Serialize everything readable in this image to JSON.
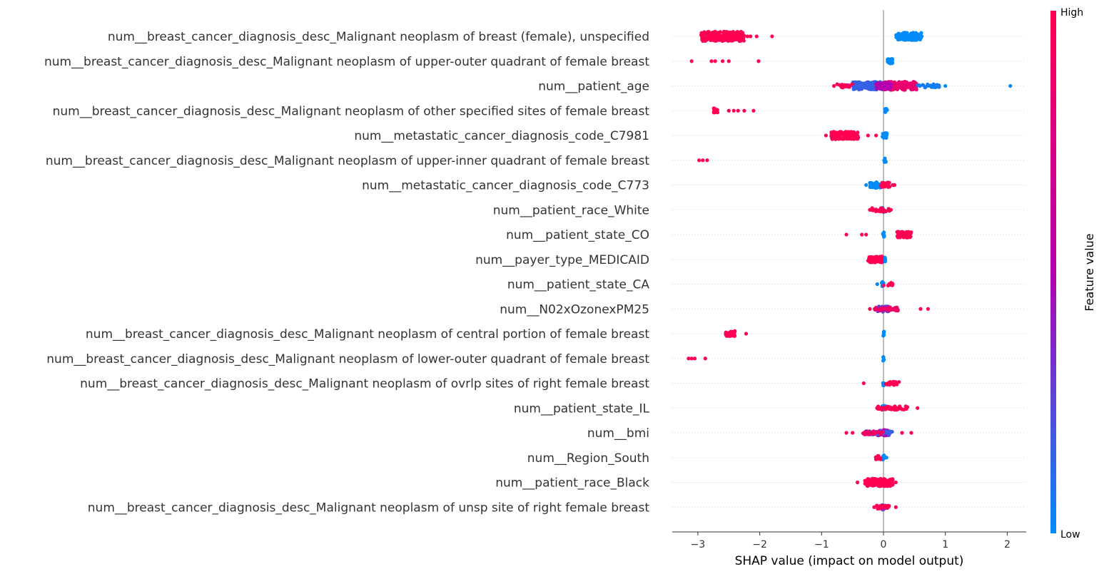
{
  "chart_data": {
    "type": "scatter",
    "subtype": "shap-beeswarm",
    "xlabel": "SHAP value (impact on model output)",
    "xlim": [
      -3.4,
      2.3
    ],
    "xticks": [
      -3,
      -2,
      -1,
      0,
      1,
      2
    ],
    "xtick_labels": [
      "−3",
      "−2",
      "−1",
      "0",
      "1",
      "2"
    ],
    "colorbar": {
      "title": "Feature value",
      "high_label": "High",
      "low_label": "Low",
      "low_color": "#008bfb",
      "high_color": "#ff0052"
    },
    "features": [
      {
        "name": "num__breast_cancer_diagnosis_desc_Malignant neoplasm of breast (female), unspecified",
        "clusters": [
          {
            "from": 0.2,
            "to": 0.62,
            "feature": 0.0,
            "density": "heavy"
          },
          {
            "from": -2.95,
            "to": -2.25,
            "feature": 1.0,
            "density": "heavy"
          }
        ],
        "points": [
          {
            "x": -2.15,
            "f": 1
          },
          {
            "x": -2.05,
            "f": 1
          },
          {
            "x": -1.8,
            "f": 1
          },
          {
            "x": -2.2,
            "f": 1
          }
        ]
      },
      {
        "name": "num__breast_cancer_diagnosis_desc_Malignant neoplasm of upper-outer quadrant of female breast",
        "clusters": [
          {
            "from": 0.06,
            "to": 0.15,
            "feature": 0.0,
            "density": "heavy"
          }
        ],
        "points": [
          {
            "x": -3.1,
            "f": 1
          },
          {
            "x": -2.78,
            "f": 1
          },
          {
            "x": -2.72,
            "f": 1
          },
          {
            "x": -2.6,
            "f": 1
          },
          {
            "x": -2.5,
            "f": 1
          },
          {
            "x": -2.02,
            "f": 1
          }
        ]
      },
      {
        "name": "num__patient_age",
        "clusters": [
          {
            "from": -0.5,
            "to": 0.0,
            "feature": 0.15,
            "density": "heavy"
          },
          {
            "from": 0.0,
            "to": 0.55,
            "feature": 0.85,
            "density": "heavy"
          },
          {
            "from": -0.12,
            "to": 0.12,
            "feature": 0.5,
            "density": "heavy"
          },
          {
            "from": 0.55,
            "to": 0.9,
            "feature": 0.05,
            "density": "light"
          },
          {
            "from": -0.75,
            "to": -0.5,
            "feature": 0.95,
            "density": "light"
          }
        ],
        "points": [
          {
            "x": 1.0,
            "f": 0
          },
          {
            "x": 2.05,
            "f": 0
          },
          {
            "x": -0.8,
            "f": 1
          }
        ]
      },
      {
        "name": "num__breast_cancer_diagnosis_desc_Malignant neoplasm of other specified sites of female breast",
        "clusters": [
          {
            "from": 0.02,
            "to": 0.06,
            "feature": 0.0,
            "density": "heavy"
          },
          {
            "from": -2.75,
            "to": -2.68,
            "feature": 1.0,
            "density": "heavy"
          }
        ],
        "points": [
          {
            "x": -2.5,
            "f": 1
          },
          {
            "x": -2.42,
            "f": 1
          },
          {
            "x": -2.35,
            "f": 1
          },
          {
            "x": -2.25,
            "f": 1
          },
          {
            "x": -2.1,
            "f": 1
          }
        ]
      },
      {
        "name": "num__metastatic_cancer_diagnosis_code_C7981",
        "clusters": [
          {
            "from": -0.02,
            "to": 0.06,
            "feature": 0.0,
            "density": "heavy"
          },
          {
            "from": -0.85,
            "to": -0.4,
            "feature": 1.0,
            "density": "heavy"
          }
        ],
        "points": [
          {
            "x": -0.93,
            "f": 1
          },
          {
            "x": -0.25,
            "f": 1
          },
          {
            "x": -0.12,
            "f": 1
          }
        ]
      },
      {
        "name": "num__breast_cancer_diagnosis_desc_Malignant neoplasm of upper-inner quadrant of female breast",
        "clusters": [
          {
            "from": 0.01,
            "to": 0.04,
            "feature": 0.0,
            "density": "heavy"
          }
        ],
        "points": [
          {
            "x": -2.98,
            "f": 1
          },
          {
            "x": -2.92,
            "f": 1
          },
          {
            "x": -2.85,
            "f": 1
          }
        ]
      },
      {
        "name": "num__metastatic_cancer_diagnosis_code_C773",
        "clusters": [
          {
            "from": -0.22,
            "to": -0.02,
            "feature": 0.0,
            "density": "heavy"
          },
          {
            "from": -0.04,
            "to": 0.1,
            "feature": 1.0,
            "density": "heavy"
          }
        ],
        "points": [
          {
            "x": -0.28,
            "f": 0
          },
          {
            "x": 0.15,
            "f": 1
          },
          {
            "x": 0.18,
            "f": 1
          }
        ]
      },
      {
        "name": "num__patient_race_White",
        "clusters": [
          {
            "from": -0.02,
            "to": 0.02,
            "feature": 0.0,
            "density": "heavy"
          },
          {
            "from": -0.2,
            "to": 0.1,
            "feature": 1.0,
            "density": "light"
          }
        ],
        "points": [
          {
            "x": -0.22,
            "f": 1
          },
          {
            "x": 0.12,
            "f": 1
          }
        ]
      },
      {
        "name": "num__patient_state_CO",
        "clusters": [
          {
            "from": -0.01,
            "to": 0.02,
            "feature": 0.0,
            "density": "heavy"
          },
          {
            "from": 0.22,
            "to": 0.45,
            "feature": 1.0,
            "density": "heavy"
          }
        ],
        "points": [
          {
            "x": -0.6,
            "f": 1
          },
          {
            "x": -0.35,
            "f": 1
          },
          {
            "x": -0.28,
            "f": 1
          }
        ]
      },
      {
        "name": "num__payer_type_MEDICAID",
        "clusters": [
          {
            "from": -0.01,
            "to": 0.03,
            "feature": 0.0,
            "density": "heavy"
          },
          {
            "from": -0.25,
            "to": -0.02,
            "feature": 1.0,
            "density": "heavy"
          }
        ],
        "points": []
      },
      {
        "name": "num__patient_state_CA",
        "clusters": [
          {
            "from": -0.04,
            "to": 0.0,
            "feature": 0.0,
            "density": "heavy"
          },
          {
            "from": 0.0,
            "to": 0.15,
            "feature": 1.0,
            "density": "light"
          }
        ],
        "points": [
          {
            "x": -0.1,
            "f": 0
          }
        ]
      },
      {
        "name": "num__N02xOzonexPM25",
        "clusters": [
          {
            "from": -0.1,
            "to": 0.1,
            "feature": 0.3,
            "density": "heavy"
          },
          {
            "from": -0.15,
            "to": 0.25,
            "feature": 0.9,
            "density": "light"
          }
        ],
        "points": [
          {
            "x": -0.22,
            "f": 1
          },
          {
            "x": 0.6,
            "f": 1
          },
          {
            "x": 0.72,
            "f": 1
          }
        ]
      },
      {
        "name": "num__breast_cancer_diagnosis_desc_Malignant neoplasm of central portion of female breast",
        "clusters": [
          {
            "from": -0.01,
            "to": 0.01,
            "feature": 0.0,
            "density": "heavy"
          },
          {
            "from": -2.55,
            "to": -2.4,
            "feature": 1.0,
            "density": "heavy"
          }
        ],
        "points": [
          {
            "x": -2.22,
            "f": 1
          }
        ]
      },
      {
        "name": "num__breast_cancer_diagnosis_desc_Malignant neoplasm of lower-outer quadrant of female breast",
        "clusters": [
          {
            "from": -0.01,
            "to": 0.01,
            "feature": 0.0,
            "density": "heavy"
          }
        ],
        "points": [
          {
            "x": -3.15,
            "f": 1
          },
          {
            "x": -3.1,
            "f": 1
          },
          {
            "x": -3.05,
            "f": 1
          },
          {
            "x": -2.88,
            "f": 1
          }
        ]
      },
      {
        "name": "num__breast_cancer_diagnosis_desc_Malignant neoplasm of ovrlp sites of right female breast",
        "clusters": [
          {
            "from": -0.01,
            "to": 0.02,
            "feature": 0.0,
            "density": "heavy"
          },
          {
            "from": 0.0,
            "to": 0.25,
            "feature": 1.0,
            "density": "light"
          }
        ],
        "points": [
          {
            "x": -0.32,
            "f": 1
          }
        ]
      },
      {
        "name": "num__patient_state_IL",
        "clusters": [
          {
            "from": -0.02,
            "to": 0.02,
            "feature": 0.0,
            "density": "heavy"
          },
          {
            "from": -0.12,
            "to": 0.4,
            "feature": 1.0,
            "density": "light"
          }
        ],
        "points": [
          {
            "x": 0.55,
            "f": 1
          }
        ]
      },
      {
        "name": "num__bmi",
        "clusters": [
          {
            "from": -0.1,
            "to": 0.1,
            "feature": 0.45,
            "density": "heavy"
          },
          {
            "from": -0.3,
            "to": 0.15,
            "feature": 0.15,
            "density": "light"
          },
          {
            "from": -0.35,
            "to": 0.0,
            "feature": 0.9,
            "density": "light"
          }
        ],
        "points": [
          {
            "x": -0.6,
            "f": 1
          },
          {
            "x": -0.5,
            "f": 1
          },
          {
            "x": 0.45,
            "f": 1
          },
          {
            "x": 0.3,
            "f": 1
          }
        ]
      },
      {
        "name": "num__Region_South",
        "clusters": [
          {
            "from": -0.01,
            "to": 0.02,
            "feature": 0.0,
            "density": "heavy"
          },
          {
            "from": -0.15,
            "to": 0.0,
            "feature": 1.0,
            "density": "light"
          }
        ],
        "points": [
          {
            "x": 0.05,
            "f": 0
          }
        ]
      },
      {
        "name": "num__patient_race_Black",
        "clusters": [
          {
            "from": -0.01,
            "to": 0.02,
            "feature": 0.0,
            "density": "heavy"
          },
          {
            "from": -0.3,
            "to": 0.15,
            "feature": 1.0,
            "density": "heavy"
          }
        ],
        "points": [
          {
            "x": -0.42,
            "f": 1
          },
          {
            "x": 0.2,
            "f": 1
          }
        ]
      },
      {
        "name": "num__breast_cancer_diagnosis_desc_Malignant neoplasm of unsp site of right female breast",
        "clusters": [
          {
            "from": -0.03,
            "to": 0.03,
            "feature": 0.3,
            "density": "heavy"
          },
          {
            "from": -0.12,
            "to": 0.1,
            "feature": 1.0,
            "density": "light"
          }
        ],
        "points": [
          {
            "x": -0.15,
            "f": 1
          },
          {
            "x": 0.2,
            "f": 1
          }
        ]
      }
    ]
  }
}
